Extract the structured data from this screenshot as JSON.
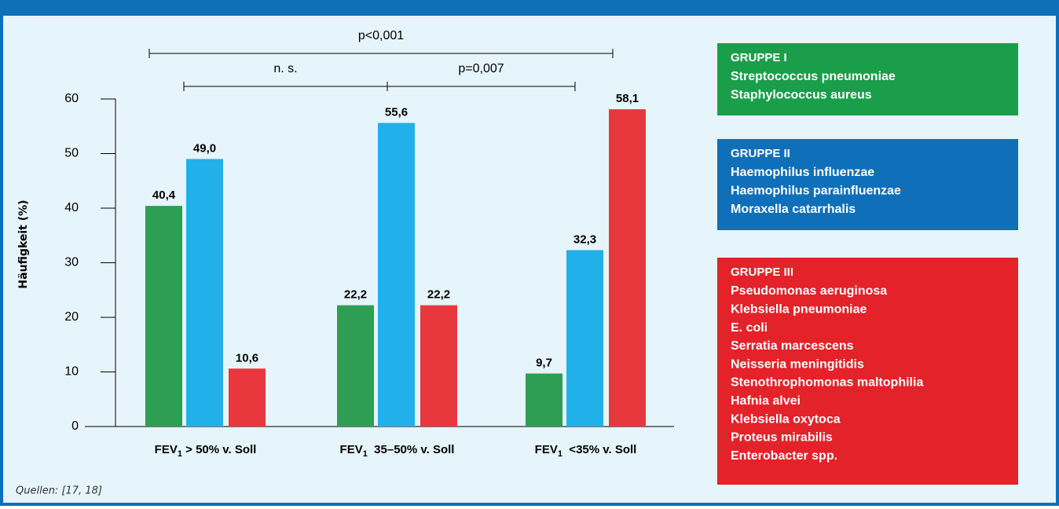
{
  "chart_data": {
    "type": "bar",
    "categories": [
      {
        "main": "FEV",
        "sub": "1",
        "rest": " > 50% v. Soll"
      },
      {
        "main": "FEV",
        "sub": "1",
        "rest": "  35–50% v. Soll"
      },
      {
        "main": "FEV",
        "sub": "1",
        "rest": "  <35% v. Soll"
      }
    ],
    "series": [
      {
        "name": "GRUPPE I",
        "color": "#2e9e55",
        "box_color": "#1a9e4a",
        "members": [
          "Streptococcus pneumoniae",
          "Staphylococcus aureus"
        ],
        "values": [
          40.4,
          22.2,
          9.7
        ],
        "value_labels": [
          "40,4",
          "22,2",
          "9,7"
        ]
      },
      {
        "name": "GRUPPE II",
        "color": "#22b0ea",
        "box_color": "#0f6fb8",
        "members": [
          "Haemophilus influenzae",
          "Haemophilus parainfluenzae",
          "Moraxella catarrhalis"
        ],
        "values": [
          49.0,
          55.6,
          32.3
        ],
        "value_labels": [
          "49,0",
          "55,6",
          "32,3"
        ]
      },
      {
        "name": "GRUPPE III",
        "color": "#e8383d",
        "box_color": "#e3222a",
        "members": [
          "Pseudomonas aeruginosa",
          "Klebsiella pneumoniae",
          "E. coli",
          "Serratia marcescens",
          "Neisseria meningitidis",
          "Stenothrophomonas maltophilia",
          "Hafnia alvei",
          "Klebsiella oxytoca",
          "Proteus mirabilis",
          "Enterobacter spp."
        ],
        "values": [
          10.6,
          22.2,
          58.1
        ],
        "value_labels": [
          "10,6",
          "22,2",
          "58,1"
        ]
      }
    ],
    "y_label": "Häufigkeit (%)",
    "ylim": [
      0,
      60
    ],
    "yticks": [
      0,
      10,
      20,
      30,
      40,
      50,
      60
    ],
    "annotations": [
      {
        "text": "p<0,001"
      },
      {
        "text": "n. s."
      },
      {
        "text": "p=0,007"
      }
    ],
    "source": "Quellen: [17, 18]"
  }
}
